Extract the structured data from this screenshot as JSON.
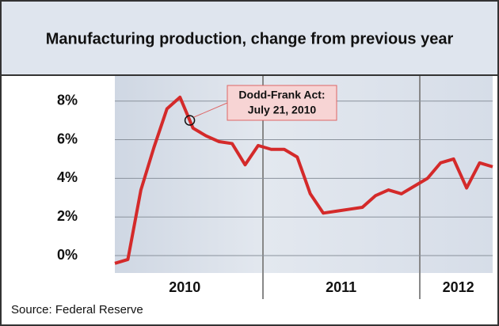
{
  "chart_data": {
    "type": "line",
    "title": "Manufacturing production, change from previous year",
    "source": "Source: Federal Reserve",
    "annotation": [
      "Dodd-Frank Act:",
      "July 21, 2010"
    ],
    "categories": [
      null,
      null,
      null,
      null,
      null,
      "2010",
      null,
      null,
      null,
      null,
      null,
      null,
      null,
      null,
      null,
      null,
      null,
      "2011",
      null,
      null,
      null,
      null,
      null,
      null,
      null,
      null,
      "2012",
      null,
      null,
      null
    ],
    "series": [
      {
        "name": "Manufacturing production",
        "color": "#d42a2a",
        "values": [
          -0.4,
          -0.2,
          3.4,
          5.6,
          7.6,
          8.2,
          6.6,
          6.2,
          5.9,
          5.8,
          4.7,
          5.7,
          5.5,
          5.5,
          5.1,
          3.2,
          2.2,
          2.3,
          2.4,
          2.5,
          3.1,
          3.4,
          3.2,
          3.6,
          4.0,
          4.8,
          5.0,
          3.5,
          4.8,
          4.6
        ]
      }
    ],
    "ylim": [
      -0.9,
      9.3
    ],
    "yticks": [
      {
        "value": 0,
        "label": "0%"
      },
      {
        "value": 2,
        "label": "2%"
      },
      {
        "value": 4,
        "label": "4%"
      },
      {
        "value": 6,
        "label": "6%"
      },
      {
        "value": 8,
        "label": "8%"
      }
    ],
    "grid": true
  }
}
